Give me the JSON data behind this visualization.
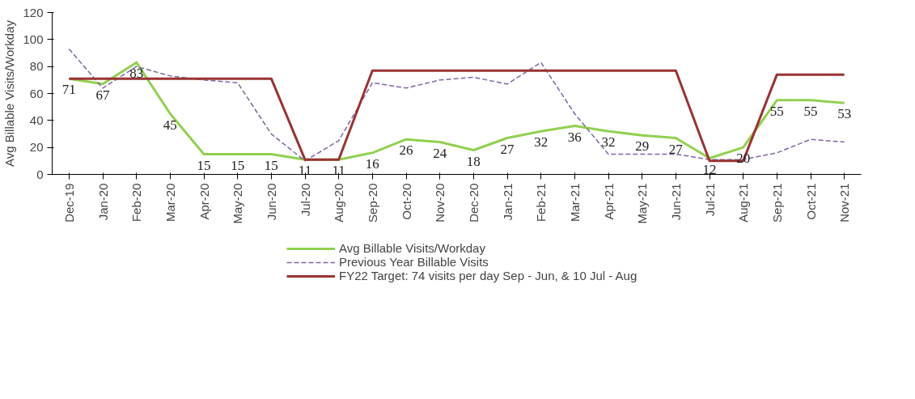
{
  "chart_data": {
    "type": "line",
    "ylabel": "Avg Billable Visits/Workday",
    "categories": [
      "Dec-19",
      "Jan-20",
      "Feb-20",
      "Mar-20",
      "Apr-20",
      "May-20",
      "Jun-20",
      "Jul-20",
      "Aug-20",
      "Sep-20",
      "Oct-20",
      "Nov-20",
      "Dec-20",
      "Jan-21",
      "Feb-21",
      "Mar-21",
      "Apr-21",
      "May-21",
      "Jun-21",
      "Jul-21",
      "Aug-21",
      "Sep-21",
      "Oct-21",
      "Nov-21"
    ],
    "series": [
      {
        "name": "Avg Billable Visits/Workday",
        "color": "#92d050",
        "line_style": "solid",
        "data_labels": true,
        "values": [
          71,
          67,
          83,
          45,
          15,
          15,
          15,
          11,
          11,
          16,
          26,
          24,
          18,
          27,
          32,
          36,
          32,
          29,
          27,
          12,
          20,
          55,
          55,
          53
        ]
      },
      {
        "name": "Previous Year Billable Visits",
        "color": "#8064a2",
        "line_style": "dashed",
        "values": [
          93,
          64,
          80,
          73,
          70,
          68,
          30,
          10,
          25,
          68,
          64,
          70,
          72,
          67,
          83,
          45,
          15,
          15,
          15,
          11,
          11,
          16,
          26,
          24
        ]
      },
      {
        "name": "FY22 Target: 74 visits per day Sep - Jun, & 10 Jul - Aug",
        "color": "#993333",
        "line_style": "solid",
        "values": [
          71,
          71,
          71,
          71,
          71,
          71,
          71,
          11,
          11,
          77,
          77,
          77,
          77,
          77,
          77,
          77,
          77,
          77,
          77,
          10,
          10,
          74,
          74,
          74
        ]
      }
    ],
    "ylim": [
      0,
      120
    ],
    "yticks": [
      0,
      20,
      40,
      60,
      80,
      100,
      120
    ],
    "grid": false,
    "legend": "bottom"
  }
}
